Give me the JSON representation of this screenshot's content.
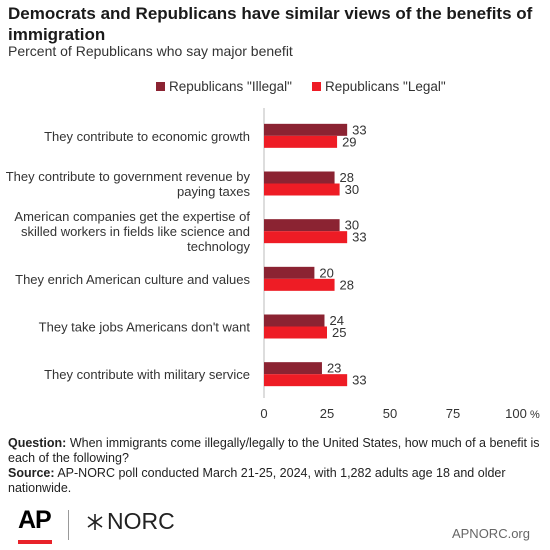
{
  "header": {
    "title": "Democrats and Republicans have similar views of the benefits of immigration",
    "subtitle": "Percent of Republicans who say major benefit"
  },
  "legend": {
    "items": [
      {
        "label": "Republicans \"Illegal\"",
        "color": "#8b2332"
      },
      {
        "label": "Republicans \"Legal\"",
        "color": "#ee1c25"
      }
    ]
  },
  "chart_data": {
    "type": "bar",
    "orientation": "horizontal",
    "categories": [
      [
        "They contribute to economic growth"
      ],
      [
        "They contribute to government revenue by",
        "paying taxes"
      ],
      [
        "American companies get the expertise of",
        "skilled workers in fields like science and",
        "technology"
      ],
      [
        "They enrich American culture and values"
      ],
      [
        "They take jobs Americans don't want"
      ],
      [
        "They contribute with military service"
      ]
    ],
    "series": [
      {
        "name": "Republicans \"Illegal\"",
        "color": "#8b2332",
        "values": [
          33,
          28,
          30,
          20,
          24,
          23
        ]
      },
      {
        "name": "Republicans \"Legal\"",
        "color": "#ee1c25",
        "values": [
          29,
          30,
          33,
          28,
          25,
          33
        ]
      }
    ],
    "xlim": [
      0,
      100
    ],
    "x_ticks": [
      "0",
      "25",
      "50",
      "75",
      "100"
    ],
    "x_unit": "%",
    "grid": false,
    "legend_position": "top-right"
  },
  "footer": {
    "question_label": "Question:",
    "question_text": "When immigrants come illegally/legally to the United States, how much of a benefit is each of the following?",
    "source_label": "Source:",
    "source_text": "AP-NORC poll conducted March 21-25, 2024, with 1,282 adults age 18 and older nationwide."
  },
  "branding": {
    "ap_logo": "AP",
    "norc_logo": "NORC",
    "site": "APNORC.org"
  }
}
